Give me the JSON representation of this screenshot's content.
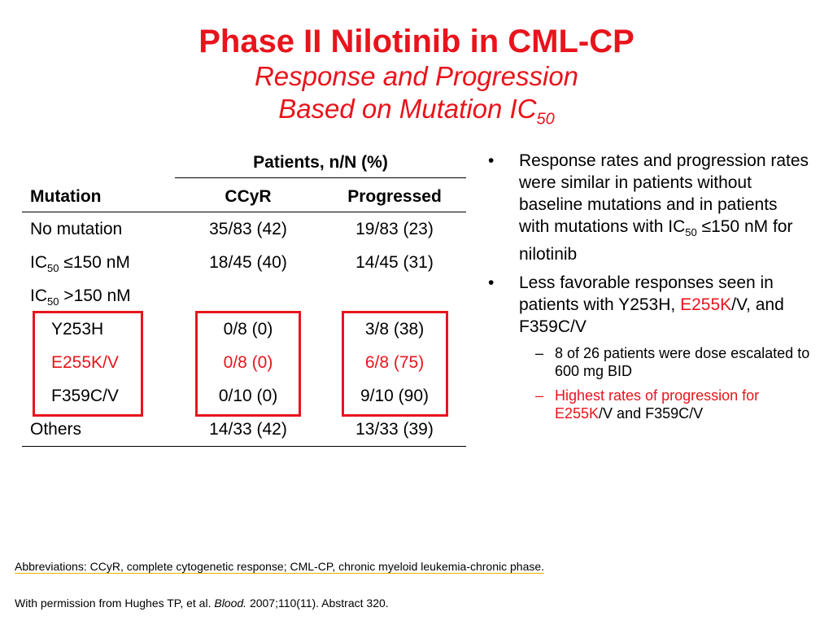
{
  "header": {
    "title": "Phase II Nilotinib in CML-CP",
    "subtitle_line1": "Response and Progression",
    "subtitle_line2_prefix": "Based on Mutation IC",
    "subtitle_line2_sub": "50"
  },
  "table": {
    "group_header": "Patients, n/N (%)",
    "columns": [
      "Mutation",
      "CCyR",
      "Progressed"
    ],
    "rows": [
      {
        "mutation": "No mutation",
        "ccyr": "35/83 (42)",
        "progressed": "19/83 (23)"
      },
      {
        "mutation_prefix": "IC",
        "mutation_sub": "50",
        "mutation_suffix": " ≤150 nM",
        "ccyr": "18/45 (40)",
        "progressed": "14/45 (31)"
      },
      {
        "mutation_prefix": "IC",
        "mutation_sub": "50",
        "mutation_suffix": " >150 nM",
        "ccyr": "",
        "progressed": ""
      },
      {
        "mutation": "Y253H",
        "ccyr": "0/8 (0)",
        "progressed": "3/8 (38)"
      },
      {
        "mutation": "E255K/V",
        "ccyr": "0/8 (0)",
        "progressed": "6/8 (75)"
      },
      {
        "mutation": "F359C/V",
        "ccyr": "0/10 (0)",
        "progressed": "9/10 (90)"
      },
      {
        "mutation": "Others",
        "ccyr": "14/33 (42)",
        "progressed": "13/33 (39)"
      }
    ]
  },
  "bullets": {
    "b1_part1": "Response rates and progression rates were similar in patients without baseline mutations and in patients with mutations with IC",
    "b1_sub": "50",
    "b1_part2": " ≤150 nM for nilotinib",
    "b2_part1": "Less favorable responses seen in patients with Y253H, ",
    "b2_red": "E255K",
    "b2_part2": "/V, and F359C/V",
    "sub1": "8 of 26 patients were dose escalated to 600 mg BID",
    "sub2_red": "Highest rates of progression for E255K",
    "sub2_rest": "/V and F359C/V",
    "dash": "–",
    "dot": "•"
  },
  "footer": {
    "abbreviations": "Abbreviations: CCyR, complete cytogenetic response; CML-CP, chronic myeloid leukemia-chronic phase.",
    "permission_prefix": "With permission from Hughes TP, et al. ",
    "permission_journal": "Blood.",
    "permission_suffix": " 2007;110(11). Abstract 320."
  },
  "colors": {
    "accent_red": "#e8141c"
  }
}
